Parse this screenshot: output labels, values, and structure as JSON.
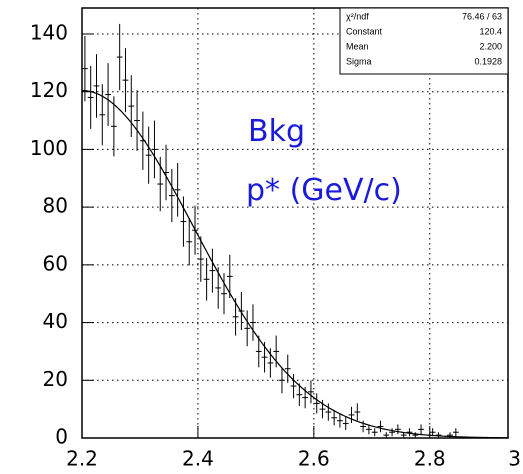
{
  "chart_data": {
    "type": "errorbar",
    "x": [
      2.205,
      2.215,
      2.225,
      2.235,
      2.245,
      2.255,
      2.265,
      2.275,
      2.285,
      2.295,
      2.305,
      2.315,
      2.325,
      2.335,
      2.345,
      2.355,
      2.365,
      2.375,
      2.385,
      2.395,
      2.405,
      2.415,
      2.425,
      2.435,
      2.445,
      2.455,
      2.465,
      2.475,
      2.485,
      2.495,
      2.505,
      2.515,
      2.525,
      2.535,
      2.545,
      2.555,
      2.565,
      2.575,
      2.585,
      2.595,
      2.605,
      2.615,
      2.625,
      2.635,
      2.645,
      2.655,
      2.665,
      2.675,
      2.685,
      2.695,
      2.705,
      2.715,
      2.725,
      2.735,
      2.745,
      2.755,
      2.765,
      2.775,
      2.785,
      2.795,
      2.805,
      2.815,
      2.825,
      2.835,
      2.845,
      2.855
    ],
    "values": [
      128,
      118,
      122,
      112,
      119,
      108,
      132,
      124,
      115,
      110,
      103,
      98,
      100,
      88,
      92,
      84,
      86,
      75,
      68,
      72,
      62,
      55,
      58,
      52,
      50,
      56,
      42,
      44,
      38,
      40,
      30,
      28,
      26,
      30,
      20,
      24,
      18,
      15,
      14,
      16,
      12,
      10,
      9,
      7,
      6,
      5,
      8,
      9,
      4,
      3,
      2,
      4,
      1,
      2,
      3,
      1,
      2,
      1,
      3,
      0,
      2,
      1,
      0,
      1,
      2,
      0
    ],
    "errors": [
      11.3,
      10.9,
      11,
      10.6,
      10.9,
      10.4,
      11.5,
      11.1,
      10.7,
      10.5,
      10.1,
      9.9,
      10,
      9.4,
      9.6,
      9.2,
      9.3,
      8.7,
      8.2,
      8.5,
      7.9,
      7.4,
      7.6,
      7.2,
      7.1,
      7.5,
      6.5,
      6.6,
      6.2,
      6.3,
      5.5,
      5.3,
      5.1,
      5.5,
      4.5,
      4.9,
      4.2,
      3.9,
      3.7,
      4,
      3.5,
      3.2,
      3,
      2.6,
      2.4,
      2.2,
      2.8,
      3,
      2,
      1.7,
      1.4,
      2,
      1,
      1.4,
      1.7,
      1,
      1.4,
      1,
      1.7,
      0,
      1.4,
      1,
      0,
      1,
      1.4,
      0
    ],
    "color": "#000000",
    "xlim": [
      2.2,
      2.935
    ],
    "xticks": [
      2.2,
      2.4,
      2.6,
      2.8,
      3
    ],
    "ylim": [
      0,
      149
    ],
    "yticks": [
      0,
      20,
      40,
      60,
      80,
      100,
      120,
      140
    ],
    "grid": true,
    "stats": [
      {
        "name": "χ²/ndf",
        "label": "76.46 / 63"
      },
      {
        "name": "Constant",
        "value": 120.4
      },
      {
        "name": "Mean",
        "value": 2.2,
        "label": "2.200"
      },
      {
        "name": "Sigma",
        "value": 0.1928,
        "label": "0.1928"
      }
    ],
    "annotations": [
      "Bkg",
      "p* (GeV/c)"
    ]
  }
}
